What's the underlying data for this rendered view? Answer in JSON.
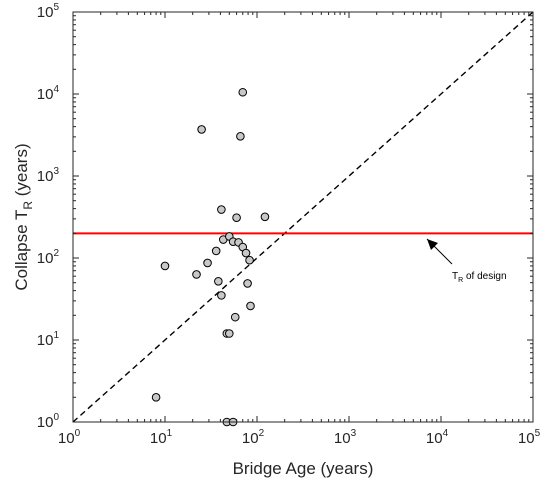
{
  "chart_data": {
    "type": "scatter",
    "xscale": "log",
    "yscale": "log",
    "xlim": [
      1,
      100000
    ],
    "ylim": [
      1,
      100000
    ],
    "xlabel": "Bridge Age  (years)",
    "ylabel_main": "Collapse  T",
    "ylabel_sub": "R",
    "ylabel_tail": "  (years)",
    "ticks": [
      {
        "value": 1,
        "base": "10",
        "exp": "0"
      },
      {
        "value": 10,
        "base": "10",
        "exp": "1"
      },
      {
        "value": 100,
        "base": "10",
        "exp": "2"
      },
      {
        "value": 1000,
        "base": "10",
        "exp": "3"
      },
      {
        "value": 10000,
        "base": "10",
        "exp": "4"
      },
      {
        "value": 100000,
        "base": "10",
        "exp": "5"
      }
    ],
    "points": [
      {
        "x": 8,
        "y": 2
      },
      {
        "x": 10,
        "y": 80
      },
      {
        "x": 22,
        "y": 63
      },
      {
        "x": 25,
        "y": 3700
      },
      {
        "x": 29,
        "y": 87
      },
      {
        "x": 36,
        "y": 122
      },
      {
        "x": 38,
        "y": 52
      },
      {
        "x": 41,
        "y": 35
      },
      {
        "x": 41,
        "y": 390
      },
      {
        "x": 43,
        "y": 168
      },
      {
        "x": 47,
        "y": 12
      },
      {
        "x": 47,
        "y": 1
      },
      {
        "x": 50,
        "y": 12
      },
      {
        "x": 50,
        "y": 183
      },
      {
        "x": 55,
        "y": 1
      },
      {
        "x": 55,
        "y": 158
      },
      {
        "x": 58,
        "y": 19
      },
      {
        "x": 60,
        "y": 310
      },
      {
        "x": 63,
        "y": 155
      },
      {
        "x": 66,
        "y": 3050
      },
      {
        "x": 70,
        "y": 10500
      },
      {
        "x": 70,
        "y": 136
      },
      {
        "x": 76,
        "y": 115
      },
      {
        "x": 79,
        "y": 49
      },
      {
        "x": 83,
        "y": 94
      },
      {
        "x": 85,
        "y": 26
      },
      {
        "x": 122,
        "y": 318
      }
    ],
    "reference_line": {
      "label": "1:1",
      "x": [
        1,
        100000
      ],
      "y": [
        1,
        100000
      ],
      "style": "dashed",
      "color": "#000000"
    },
    "design_line": {
      "y": 200,
      "color": "#ff0000"
    },
    "annotation": {
      "text_main": "T",
      "text_sub": "R",
      "text_tail": " of design"
    },
    "marker_fill": "#c8c8c8",
    "marker_edge": "#000000",
    "grid": false
  }
}
